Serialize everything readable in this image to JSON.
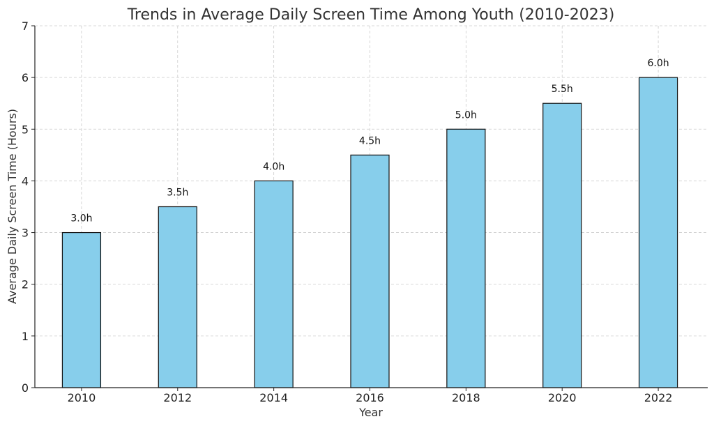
{
  "chart_data": {
    "type": "bar",
    "title": "Trends in Average Daily Screen Time Among Youth (2010-2023)",
    "xlabel": "Year",
    "ylabel": "Average Daily Screen Time (Hours)",
    "categories": [
      "2010",
      "2012",
      "2014",
      "2016",
      "2018",
      "2020",
      "2022"
    ],
    "values": [
      3.0,
      3.5,
      4.0,
      4.5,
      5.0,
      5.5,
      6.0
    ],
    "data_labels": [
      "3.0h",
      "3.5h",
      "4.0h",
      "4.5h",
      "5.0h",
      "5.5h",
      "6.0h"
    ],
    "ylim": [
      0,
      7
    ],
    "yticks": [
      "0",
      "1",
      "2",
      "3",
      "4",
      "5",
      "6",
      "7"
    ],
    "grid": true,
    "bar_color": "#87CEEB",
    "edge_color": "#111111"
  }
}
